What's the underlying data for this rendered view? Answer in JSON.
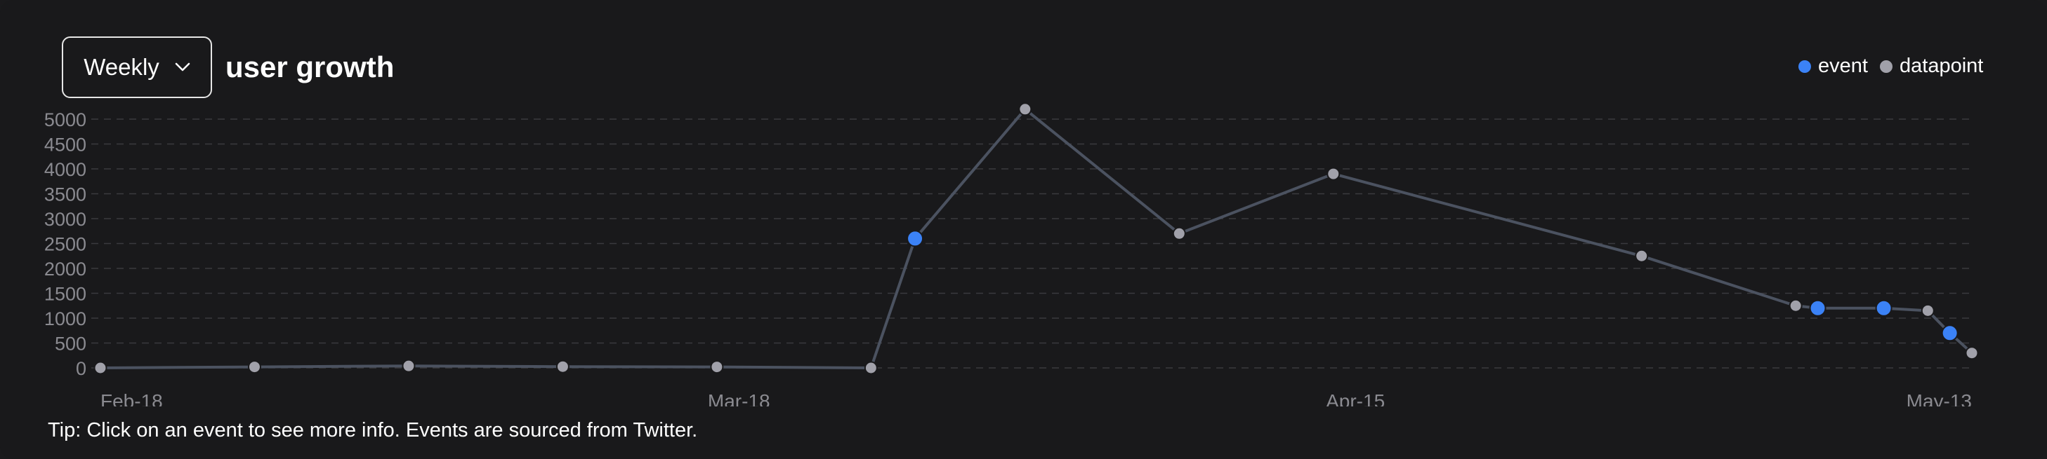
{
  "header": {
    "period_select": "Weekly",
    "title": "user growth"
  },
  "legend": [
    {
      "label": "event",
      "color": "#3b82f6"
    },
    {
      "label": "datapoint",
      "color": "#a1a1aa"
    }
  ],
  "tip": "Tip: Click on an event to see more info. Events are sourced from Twitter.",
  "colors": {
    "background": "#19191b",
    "event": "#3b82f6",
    "datapoint": "#a1a1aa",
    "line": "#4b5260",
    "grid": "#3a3a3e",
    "tick_label": "#8a8a90"
  },
  "chart_data": {
    "type": "line",
    "title": "user growth",
    "xlabel": "",
    "ylabel": "",
    "x_ticks": [
      "Feb-18",
      "Mar-18",
      "Apr-15",
      "May-13"
    ],
    "x_tick_dates": [
      "2024-02-18",
      "2024-03-18",
      "2024-04-15",
      "2024-05-13"
    ],
    "y_ticks": [
      0,
      500,
      1000,
      1500,
      2000,
      2500,
      3000,
      3500,
      4000,
      4500,
      5000
    ],
    "ylim": [
      0,
      5000
    ],
    "grid": true,
    "legend_position": "top-right",
    "series": [
      {
        "name": "datapoint",
        "points": [
          {
            "date": "2024-02-18",
            "value": 0
          },
          {
            "date": "2024-02-25",
            "value": 20
          },
          {
            "date": "2024-03-03",
            "value": 40
          },
          {
            "date": "2024-03-10",
            "value": 25
          },
          {
            "date": "2024-03-17",
            "value": 20
          },
          {
            "date": "2024-03-24",
            "value": 0
          },
          {
            "date": "2024-03-31",
            "value": 5200
          },
          {
            "date": "2024-04-07",
            "value": 2700
          },
          {
            "date": "2024-04-14",
            "value": 3900
          },
          {
            "date": "2024-04-28",
            "value": 2250
          },
          {
            "date": "2024-05-05",
            "value": 1250
          },
          {
            "date": "2024-05-11",
            "value": 1150
          },
          {
            "date": "2024-05-13",
            "value": 300
          }
        ]
      },
      {
        "name": "event",
        "points": [
          {
            "date": "2024-03-26",
            "value": 2600
          },
          {
            "date": "2024-05-06",
            "value": 1200
          },
          {
            "date": "2024-05-09",
            "value": 1200
          },
          {
            "date": "2024-05-12",
            "value": 700
          }
        ]
      }
    ]
  }
}
